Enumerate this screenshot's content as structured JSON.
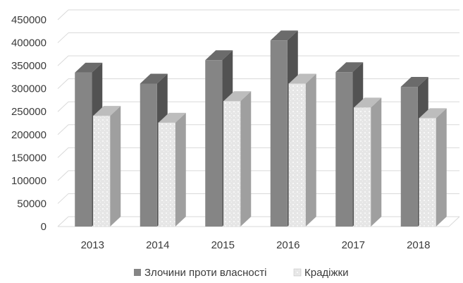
{
  "chart_data": {
    "type": "bar",
    "style": "3d-clustered-column",
    "categories": [
      "2013",
      "2014",
      "2015",
      "2016",
      "2017",
      "2018"
    ],
    "series": [
      {
        "name": "Злочини проти власності",
        "values": [
          335000,
          311000,
          362000,
          405000,
          336000,
          304000
        ],
        "color": "#858585"
      },
      {
        "name": "Крадіжки",
        "values": [
          241000,
          226000,
          273000,
          311000,
          259000,
          236000
        ],
        "color": "#e2e2e2"
      }
    ],
    "ylim": [
      0,
      450000
    ],
    "yticks": [
      "0",
      "50000",
      "100000",
      "150000",
      "200000",
      "250000",
      "300000",
      "350000",
      "400000",
      "450000"
    ],
    "grid": true,
    "legend_position": "bottom"
  }
}
